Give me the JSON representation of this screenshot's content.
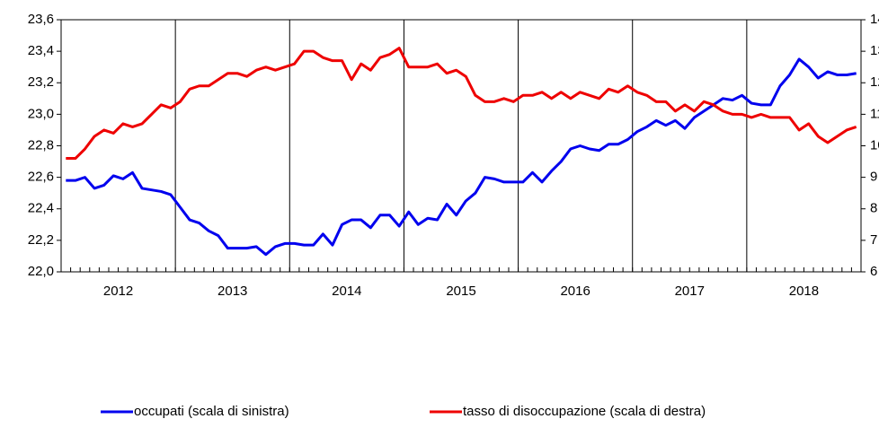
{
  "chart_data": {
    "type": "line",
    "categories": [
      null,
      null,
      null,
      null,
      null,
      "2012",
      null,
      null,
      null,
      null,
      null,
      null,
      null,
      null,
      null,
      null,
      null,
      "2013",
      null,
      null,
      null,
      null,
      null,
      null,
      null,
      null,
      null,
      null,
      null,
      "2014",
      null,
      null,
      null,
      null,
      null,
      null,
      null,
      null,
      null,
      null,
      null,
      "2015",
      null,
      null,
      null,
      null,
      null,
      null,
      null,
      null,
      null,
      null,
      null,
      "2016",
      null,
      null,
      null,
      null,
      null,
      null,
      null,
      null,
      null,
      null,
      null,
      "2017",
      null,
      null,
      null,
      null,
      null,
      null,
      null,
      null,
      null,
      null,
      null,
      "2018",
      null,
      null,
      null,
      null,
      null,
      null
    ],
    "series": [
      {
        "name": "occupati (scala di sinistra)",
        "color": "#0000ee",
        "values": [
          22.58,
          22.58,
          22.6,
          22.53,
          22.55,
          22.61,
          22.59,
          22.63,
          22.53,
          22.52,
          22.51,
          22.49,
          22.41,
          22.33,
          22.31,
          22.26,
          22.23,
          22.15,
          22.15,
          22.15,
          22.16,
          22.11,
          22.16,
          22.18,
          22.18,
          22.17,
          22.17,
          22.24,
          22.17,
          22.3,
          22.33,
          22.33,
          22.28,
          22.36,
          22.36,
          22.29,
          22.38,
          22.3,
          22.34,
          22.33,
          22.43,
          22.36,
          22.45,
          22.5,
          22.6,
          22.59,
          22.57,
          22.57,
          22.57,
          22.63,
          22.57,
          22.64,
          22.7,
          22.78,
          22.8,
          22.78,
          22.77,
          22.81,
          22.81,
          22.84,
          22.89,
          22.92,
          22.96,
          22.93,
          22.96,
          22.91,
          22.98,
          23.02,
          23.06,
          23.1,
          23.09,
          23.12,
          23.07,
          23.06,
          23.06,
          23.18,
          23.25,
          23.35,
          23.3,
          23.23,
          23.27,
          23.25,
          23.25,
          23.26
        ]
      },
      {
        "name": "tasso di disoccupazione (scala di destra)",
        "color": "#ee0000",
        "axis": "y2",
        "values": [
          9.6,
          9.6,
          9.9,
          10.3,
          10.5,
          10.4,
          10.7,
          10.6,
          10.7,
          11.0,
          11.3,
          11.2,
          11.4,
          11.8,
          11.9,
          11.9,
          12.1,
          12.3,
          12.3,
          12.2,
          12.4,
          12.5,
          12.4,
          12.5,
          12.6,
          13.0,
          13.0,
          12.8,
          12.7,
          12.7,
          12.1,
          12.6,
          12.4,
          12.8,
          12.9,
          13.1,
          12.5,
          12.5,
          12.5,
          12.6,
          12.3,
          12.4,
          12.2,
          11.6,
          11.4,
          11.4,
          11.5,
          11.4,
          11.6,
          11.6,
          11.7,
          11.5,
          11.7,
          11.5,
          11.7,
          11.6,
          11.5,
          11.8,
          11.7,
          11.9,
          11.7,
          11.6,
          11.4,
          11.4,
          11.1,
          11.3,
          11.1,
          11.4,
          11.3,
          11.1,
          11.0,
          11.0,
          10.9,
          11.0,
          10.9,
          10.9,
          10.9,
          10.5,
          10.7,
          10.3,
          10.1,
          10.3,
          10.5,
          10.6
        ]
      }
    ],
    "ylim": [
      22.0,
      23.6
    ],
    "yticks": [
      {
        "value": 22.0,
        "label": "22,0"
      },
      {
        "value": 22.2,
        "label": "22,2"
      },
      {
        "value": 22.4,
        "label": "22,4"
      },
      {
        "value": 22.6,
        "label": "22,6"
      },
      {
        "value": 22.8,
        "label": "22,8"
      },
      {
        "value": 23.0,
        "label": "23,0"
      },
      {
        "value": 23.2,
        "label": "23,2"
      },
      {
        "value": 23.4,
        "label": "23,4"
      },
      {
        "value": 23.6,
        "label": "23,6"
      }
    ],
    "y2lim": [
      6,
      14
    ],
    "y2ticks": [
      6,
      7,
      8,
      9,
      10,
      11,
      12,
      13,
      14
    ]
  }
}
